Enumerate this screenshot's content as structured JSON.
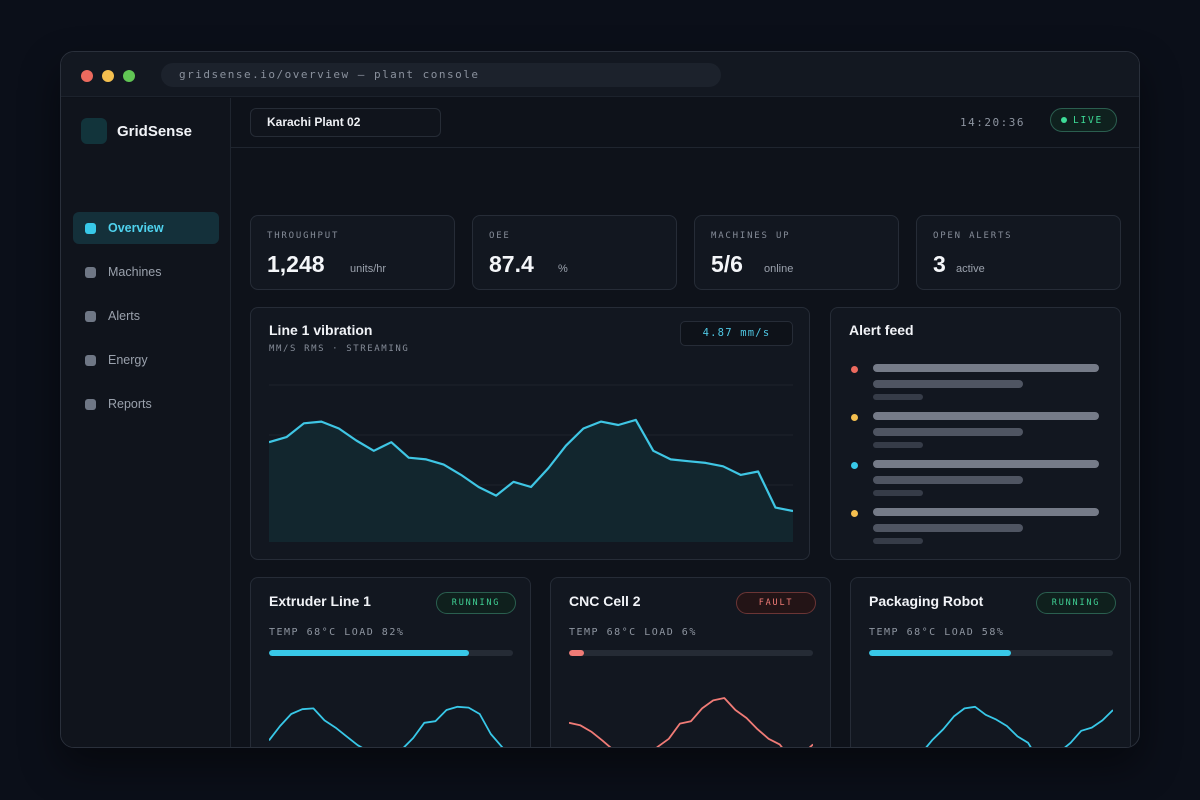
{
  "window": {
    "url": "gridsense.io/overview — plant console"
  },
  "sidebar": {
    "brand": "GridSense",
    "items": [
      {
        "label": "Overview",
        "active": true
      },
      {
        "label": "Machines",
        "active": false
      },
      {
        "label": "Alerts",
        "active": false
      },
      {
        "label": "Energy",
        "active": false
      },
      {
        "label": "Reports",
        "active": false
      }
    ]
  },
  "header": {
    "plant": "Karachi Plant 02",
    "time": "14:20:36",
    "status": "LIVE"
  },
  "kpis": [
    {
      "label": "THROUGHPUT",
      "value": "1,248",
      "unit": "units/hr"
    },
    {
      "label": "OEE",
      "value": "87.4",
      "unit": "%"
    },
    {
      "label": "MACHINES UP",
      "value": "5/6",
      "unit": "online"
    },
    {
      "label": "OPEN ALERTS",
      "value": "3",
      "unit": "active"
    }
  ],
  "vibration": {
    "title": "Line 1 vibration",
    "subtitle": "MM/S RMS · STREAMING",
    "reading": "4.87 mm/s",
    "chart_data": {
      "type": "area",
      "ylim": [
        0,
        100
      ],
      "grid": true,
      "color": "#3fc6e4",
      "values": [
        58,
        61,
        69,
        70,
        66,
        59,
        53,
        58,
        49,
        48,
        45,
        39,
        32,
        27,
        35,
        32,
        43,
        56,
        66,
        70,
        68,
        71,
        53,
        48,
        47,
        46,
        44,
        39,
        41,
        20,
        18
      ]
    }
  },
  "alert_feed": {
    "title": "Alert feed",
    "items": [
      {
        "color": "#ec6a5e"
      },
      {
        "color": "#f4bf4f"
      },
      {
        "color": "#38c8e8"
      },
      {
        "color": "#f4bf4f"
      }
    ]
  },
  "machines": [
    {
      "name": "Extruder Line 1",
      "status": "RUNNING",
      "stats": "TEMP 68°C LOAD 82%",
      "load": 0.82,
      "color": "#38c8e8",
      "spark": [
        22,
        40,
        55,
        61,
        62,
        47,
        38,
        27,
        16,
        8,
        -3,
        0,
        11,
        25,
        44,
        46,
        60,
        64,
        63,
        55,
        30,
        14,
        -2
      ]
    },
    {
      "name": "CNC Cell 2",
      "status": "FAULT",
      "stats": "TEMP 68°C LOAD 6%",
      "load": 0.06,
      "color": "#f07b76",
      "spark": [
        44,
        41,
        33,
        22,
        10,
        -1,
        -2,
        1,
        14,
        24,
        43,
        46,
        62,
        72,
        75,
        60,
        50,
        36,
        24,
        17,
        -1,
        4,
        17
      ]
    },
    {
      "name": "Packaging Robot",
      "status": "RUNNING",
      "stats": "TEMP 68°C LOAD 58%",
      "load": 0.58,
      "color": "#38c8e8",
      "spark": [
        5,
        -2,
        -2,
        2,
        7,
        7,
        23,
        36,
        52,
        62,
        64,
        54,
        48,
        40,
        27,
        19,
        -3,
        -2,
        8,
        19,
        34,
        38,
        47,
        60
      ]
    }
  ]
}
